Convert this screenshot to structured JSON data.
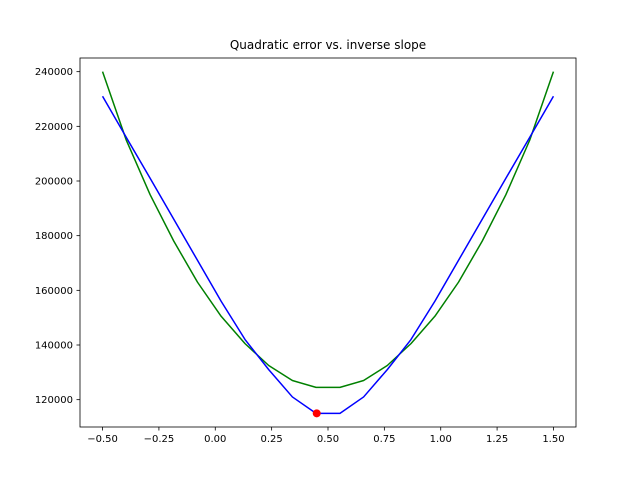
{
  "chart_data": {
    "type": "line",
    "title": "Quadratic error vs. inverse slope",
    "xlabel": "",
    "ylabel": "",
    "xlim": [
      -0.6,
      1.6
    ],
    "ylim": [
      110000,
      245000
    ],
    "x_ticks": [
      -0.5,
      -0.25,
      0.0,
      0.25,
      0.5,
      0.75,
      1.0,
      1.25,
      1.5
    ],
    "x_tick_labels": [
      "−0.50",
      "−0.25",
      "0.00",
      "0.25",
      "0.50",
      "0.75",
      "1.00",
      "1.25",
      "1.50"
    ],
    "y_ticks": [
      120000,
      140000,
      160000,
      180000,
      200000,
      220000,
      240000
    ],
    "y_tick_labels": [
      "120000",
      "140000",
      "160000",
      "180000",
      "200000",
      "220000",
      "240000"
    ],
    "grid": false,
    "x": [
      -0.5,
      -0.395,
      -0.289,
      -0.184,
      -0.079,
      0.026,
      0.132,
      0.237,
      0.342,
      0.447,
      0.553,
      0.658,
      0.763,
      0.868,
      0.974,
      1.079,
      1.184,
      1.289,
      1.395,
      1.5
    ],
    "series": [
      {
        "color": "#008000",
        "values": [
          240000,
          215000,
          195000,
          178000,
          163000,
          150500,
          140500,
          132500,
          127000,
          124500,
          124500,
          127000,
          132500,
          140500,
          150500,
          163000,
          178000,
          195000,
          215000,
          240000
        ]
      },
      {
        "color": "#0000ff",
        "values": [
          231000,
          216000,
          201000,
          186000,
          171000,
          156000,
          142000,
          131000,
          121000,
          115000,
          115000,
          121000,
          131000,
          142000,
          156000,
          171000,
          186000,
          201000,
          216000,
          231000
        ]
      }
    ],
    "highlight_point": {
      "x": 0.45,
      "y": 115000,
      "color": "#ff0000"
    }
  }
}
